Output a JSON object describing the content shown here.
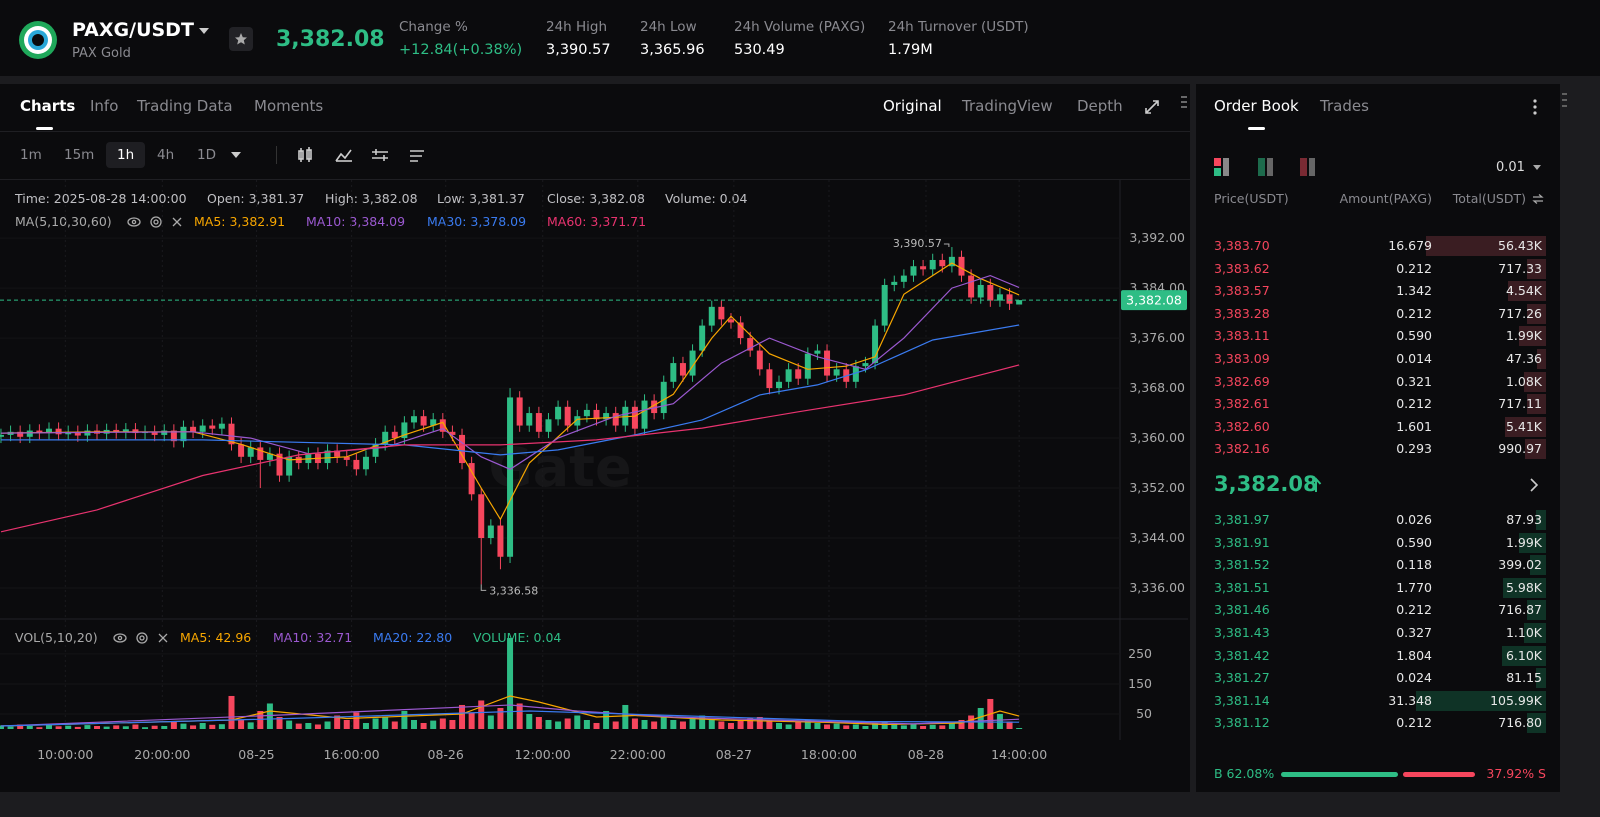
{
  "header": {
    "pair": "PAXG/USDT",
    "name": "PAX Gold",
    "price": "3,382.08",
    "stats": [
      {
        "label": "Change %",
        "value": "+12.84(+0.38%)"
      },
      {
        "label": "24h High",
        "value": "3,390.57"
      },
      {
        "label": "24h Low",
        "value": "3,365.96"
      },
      {
        "label": "24h Volume (PAXG)",
        "value": "530.49"
      },
      {
        "label": "24h Turnover (USDT)",
        "value": "1.79M"
      }
    ]
  },
  "tabs": [
    "Charts",
    "Info",
    "Trading Data",
    "Moments"
  ],
  "views": [
    "Original",
    "TradingView",
    "Depth"
  ],
  "intervals": [
    "1m",
    "15m",
    "1h",
    "4h",
    "1D"
  ],
  "chart_data": [
    {
      "type": "candlestick",
      "info": [
        "Time: 2025-08-28 14:00:00",
        "Open: 3,381.37",
        "High: 3,382.08",
        "Low: 3,381.37",
        "Close: 3,382.08",
        "Volume: 0.04"
      ],
      "indicator": "MA(5,10,30,60)",
      "watermark": "Gate",
      "up_color": "#2ebd85",
      "down_color": "#f6465d",
      "open": [
        3360.2,
        3360.5,
        3361,
        3360.2,
        3361.2,
        3360.8,
        3361.5,
        3360.6,
        3361,
        3360.4,
        3361.2,
        3360.7,
        3361.3,
        3360.9,
        3361.4,
        3360.8,
        3361,
        3360.5,
        3361.2,
        3359.5,
        3361.8,
        3361,
        3362,
        3361.5,
        3362.3,
        3359,
        3357,
        3358.5,
        3356.5,
        3357.5,
        3354,
        3357,
        3356,
        3357.5,
        3356,
        3358,
        3357,
        3356.5,
        3355,
        3357,
        3359,
        3361,
        3360,
        3362.5,
        3363.5,
        3362,
        3363,
        3361,
        3360.5,
        3356,
        3351,
        3344,
        3346,
        3341,
        3366.5,
        3362,
        3364,
        3361,
        3363,
        3365,
        3362,
        3363.5,
        3364.5,
        3363,
        3364,
        3362,
        3365,
        3361.5,
        3366,
        3364,
        3369,
        3372,
        3370,
        3374,
        3378,
        3381,
        3379,
        3378.5,
        3376,
        3374,
        3371,
        3368,
        3369,
        3371,
        3369.5,
        3373.5,
        3374,
        3370,
        3371,
        3369,
        3371.5,
        3372,
        3378,
        3384.5,
        3385,
        3386,
        3387.5,
        3387,
        3388.5,
        3387.5,
        3389,
        3386,
        3382.5,
        3384.5,
        3382,
        3383,
        3381.37
      ],
      "high": [
        3361.5,
        3362,
        3362,
        3362.2,
        3362.2,
        3362.5,
        3362.5,
        3362,
        3362,
        3362.2,
        3362.2,
        3362.3,
        3362.3,
        3362.4,
        3362.4,
        3362,
        3362,
        3362.2,
        3362.2,
        3362.8,
        3362.8,
        3363,
        3363,
        3363.3,
        3363.3,
        3360,
        3359.5,
        3359.5,
        3358.5,
        3358.5,
        3358,
        3358,
        3358.5,
        3358.5,
        3359,
        3359,
        3358,
        3357.5,
        3358,
        3360,
        3362,
        3362,
        3363.5,
        3364.5,
        3364.5,
        3364,
        3364,
        3362,
        3361.5,
        3357,
        3352,
        3347,
        3347,
        3368,
        3367.5,
        3365,
        3365,
        3364,
        3366,
        3366,
        3364.5,
        3365.5,
        3365.5,
        3365,
        3365,
        3366,
        3366,
        3367,
        3367,
        3370,
        3373,
        3373,
        3375,
        3379,
        3382,
        3382,
        3380,
        3379.5,
        3377,
        3375,
        3372,
        3370,
        3372,
        3372,
        3374.5,
        3375,
        3375,
        3372,
        3372,
        3372.5,
        3373,
        3379,
        3385.5,
        3386,
        3387,
        3388.5,
        3388.5,
        3389.5,
        3389.5,
        3390.57,
        3390,
        3387,
        3385.5,
        3385.5,
        3384,
        3384,
        3382.08
      ],
      "low": [
        3359.2,
        3359.5,
        3359.2,
        3359.2,
        3359.8,
        3359.8,
        3359.6,
        3359.6,
        3359.4,
        3359.4,
        3359.7,
        3359.7,
        3359.9,
        3359.9,
        3359.8,
        3359.8,
        3359.5,
        3359.5,
        3358.5,
        3358.5,
        3360,
        3360,
        3360.5,
        3360.5,
        3358,
        3356,
        3356,
        3352,
        3355.5,
        3353,
        3353,
        3355,
        3355,
        3355,
        3355,
        3356,
        3355.5,
        3354,
        3354,
        3356,
        3358,
        3359,
        3359,
        3361.5,
        3361,
        3361,
        3360,
        3359.5,
        3355,
        3350,
        3336.58,
        3343,
        3339,
        3340,
        3361,
        3361,
        3360,
        3360,
        3362,
        3361,
        3361,
        3362.5,
        3362,
        3362,
        3361,
        3361,
        3360.5,
        3360.5,
        3363,
        3363,
        3368,
        3369,
        3369,
        3373,
        3377,
        3378,
        3377.5,
        3375,
        3373,
        3370,
        3367,
        3367,
        3368,
        3368.5,
        3368.5,
        3372.5,
        3369,
        3369,
        3368,
        3368,
        3370.5,
        3371,
        3377,
        3383.5,
        3384,
        3385,
        3386,
        3386,
        3386.5,
        3386.5,
        3385,
        3381.5,
        3381.5,
        3381,
        3381,
        3380.5,
        3381.37
      ],
      "close": [
        3360.5,
        3361,
        3360.2,
        3361.2,
        3360.8,
        3361.5,
        3360.6,
        3361,
        3360.4,
        3361.2,
        3360.7,
        3361.3,
        3360.9,
        3361.4,
        3360.8,
        3361,
        3360.5,
        3361.2,
        3359.5,
        3361.8,
        3361,
        3362,
        3361.5,
        3362.3,
        3359,
        3357,
        3358.5,
        3356.5,
        3357.5,
        3354,
        3357,
        3356,
        3357.5,
        3356,
        3358,
        3357,
        3356.5,
        3355,
        3357,
        3359,
        3361,
        3360,
        3362.5,
        3363.5,
        3362,
        3363,
        3361,
        3360.5,
        3356,
        3351,
        3344,
        3346,
        3341,
        3366.5,
        3362,
        3364,
        3361,
        3363,
        3365,
        3362,
        3363.5,
        3364.5,
        3363,
        3364,
        3362,
        3365,
        3361.5,
        3366,
        3364,
        3369,
        3372,
        3370,
        3374,
        3378,
        3381,
        3379,
        3378.5,
        3376,
        3374,
        3371,
        3368,
        3369,
        3371,
        3369.5,
        3373.5,
        3374,
        3370,
        3371,
        3369,
        3371.5,
        3372,
        3378,
        3384.5,
        3385,
        3386,
        3387.5,
        3387,
        3388.5,
        3387.5,
        3389,
        3386,
        3382.5,
        3384.5,
        3382,
        3383,
        3381.5,
        3382.08
      ],
      "series": [
        {
          "legend": "MA5: 3,382.91",
          "color": "#f7a600",
          "x": [
            0,
            10,
            20,
            25,
            30,
            36,
            42,
            46,
            50,
            52,
            55,
            60,
            66,
            70,
            74,
            76,
            80,
            84,
            88,
            91,
            94,
            99,
            102,
            106
          ],
          "values": [
            3360.8,
            3361,
            3361,
            3359,
            3356.5,
            3357,
            3360.5,
            3362.5,
            3352,
            3347,
            3356,
            3363,
            3363.5,
            3367,
            3376,
            3379.5,
            3373.5,
            3371,
            3371.5,
            3373,
            3383,
            3388,
            3385.5,
            3382.91
          ]
        },
        {
          "legend": "MA10: 3,384.09",
          "color": "#9b59d0",
          "x": [
            0,
            10,
            20,
            26,
            32,
            40,
            46,
            50,
            53,
            58,
            64,
            70,
            75,
            80,
            85,
            90,
            94,
            99,
            103,
            106
          ],
          "values": [
            3360.8,
            3360.9,
            3361,
            3360,
            3357.5,
            3358.5,
            3361.5,
            3357,
            3355,
            3360,
            3363.5,
            3365.5,
            3372,
            3376,
            3373,
            3371,
            3376,
            3384,
            3386,
            3384.09
          ]
        },
        {
          "legend": "MA30: 3,378.09",
          "color": "#3a7bf0",
          "x": [
            0,
            21,
            42,
            52,
            58,
            66,
            73,
            79,
            85,
            90,
            97,
            106
          ],
          "values": [
            3359.7,
            3359.7,
            3358.9,
            3357.3,
            3358.1,
            3360.5,
            3362.9,
            3366.9,
            3368.5,
            3370.9,
            3375.7,
            3378.09
          ]
        },
        {
          "legend": "MA60: 3,371.71",
          "color": "#e8336f",
          "x": [
            0,
            10,
            21,
            31,
            42,
            52,
            62,
            73,
            83,
            94,
            106
          ],
          "values": [
            3345,
            3348.5,
            3354,
            3357.3,
            3358.9,
            3358.9,
            3359.7,
            3361.6,
            3364.2,
            3366.9,
            3371.71
          ]
        }
      ],
      "last_price": {
        "value": 3382.08,
        "label": "3,382.08"
      },
      "annotations": [
        {
          "x": 99,
          "value": 3390.57,
          "label": "3,390.57"
        },
        {
          "x": 50,
          "value": 3336.58,
          "label": "3,336.58"
        }
      ],
      "xlim": [
        -0.1,
        116.5
      ],
      "xticks": [
        {
          "value": 6.7,
          "label": "10:00:00"
        },
        {
          "value": 16.8,
          "label": "20:00:00"
        },
        {
          "value": 26.6,
          "label": "08-25"
        },
        {
          "value": 36.5,
          "label": "16:00:00"
        },
        {
          "value": 46.3,
          "label": "08-26"
        },
        {
          "value": 56.4,
          "label": "12:00:00"
        },
        {
          "value": 66.3,
          "label": "22:00:00"
        },
        {
          "value": 76.3,
          "label": "08-27"
        },
        {
          "value": 86.2,
          "label": "18:00:00"
        },
        {
          "value": 96.3,
          "label": "08-28"
        },
        {
          "value": 106,
          "label": "14:00:00"
        }
      ],
      "ylim": [
        3331.2,
        3401.3
      ],
      "yticks": [
        {
          "value": 3336,
          "label": "3,336.00"
        },
        {
          "value": 3344,
          "label": "3,344.00"
        },
        {
          "value": 3352,
          "label": "3,352.00"
        },
        {
          "value": 3360,
          "label": "3,360.00"
        },
        {
          "value": 3368,
          "label": "3,368.00"
        },
        {
          "value": 3376,
          "label": "3,376.00"
        },
        {
          "value": 3384,
          "label": "3,384.00"
        },
        {
          "value": 3392,
          "label": "3,392.00"
        }
      ],
      "grid": true
    },
    {
      "type": "bar",
      "indicator": "VOL(5,10,20)",
      "values": [
        12,
        8,
        15,
        10,
        6,
        14,
        9,
        11,
        7,
        13,
        10,
        8,
        12,
        9,
        15,
        6,
        11,
        10,
        25,
        18,
        12,
        20,
        14,
        16,
        110,
        30,
        22,
        60,
        85,
        40,
        28,
        18,
        20,
        15,
        25,
        45,
        30,
        55,
        20,
        35,
        40,
        25,
        60,
        30,
        20,
        28,
        35,
        30,
        80,
        55,
        95,
        45,
        70,
        303,
        85,
        50,
        40,
        30,
        25,
        35,
        45,
        30,
        20,
        60,
        25,
        80,
        35,
        30,
        25,
        40,
        30,
        25,
        35,
        45,
        30,
        25,
        20,
        30,
        35,
        40,
        30,
        20,
        15,
        25,
        30,
        20,
        15,
        18,
        12,
        15,
        10,
        20,
        25,
        15,
        12,
        18,
        10,
        14,
        12,
        20,
        30,
        45,
        70,
        100,
        50,
        25,
        0.04
      ],
      "series": [
        {
          "legend": "MA5: 42.96",
          "color": "#f7a600",
          "x": [
            0,
            24,
            28,
            36,
            48,
            53,
            56,
            62,
            66,
            75,
            86,
            92,
            100,
            104,
            106
          ],
          "values": [
            10,
            30,
            60,
            35,
            50,
            110,
            90,
            40,
            45,
            30,
            22,
            15,
            20,
            60,
            42.96
          ]
        },
        {
          "legend": "MA10: 32.71",
          "color": "#9b59d0",
          "x": [
            0,
            28,
            53,
            60,
            70,
            80,
            95,
            106
          ],
          "values": [
            10,
            45,
            80,
            60,
            40,
            30,
            17,
            32.71
          ]
        },
        {
          "legend": "MA20: 22.80",
          "color": "#3a7bf0",
          "x": [
            0,
            30,
            55,
            70,
            90,
            106
          ],
          "values": [
            10,
            35,
            60,
            45,
            25,
            22.8
          ]
        }
      ],
      "volume_legend": "VOLUME: 0.04",
      "ylim": [
        0,
        363
      ],
      "yticks": [
        50,
        150,
        250
      ]
    }
  ],
  "order_book": {
    "tabs": [
      "Order Book",
      "Trades"
    ],
    "precision": "0.01",
    "columns": [
      "Price(USDT)",
      "Amount(PAXG)",
      "Total(USDT)"
    ],
    "asks": [
      [
        "3,383.70",
        "16.679",
        "56.43K"
      ],
      [
        "3,383.62",
        "0.212",
        "717.33"
      ],
      [
        "3,383.57",
        "1.342",
        "4.54K"
      ],
      [
        "3,383.28",
        "0.212",
        "717.26"
      ],
      [
        "3,383.11",
        "0.590",
        "1.99K"
      ],
      [
        "3,383.09",
        "0.014",
        "47.36"
      ],
      [
        "3,382.69",
        "0.321",
        "1.08K"
      ],
      [
        "3,382.61",
        "0.212",
        "717.11"
      ],
      [
        "3,382.60",
        "1.601",
        "5.41K"
      ],
      [
        "3,382.16",
        "0.293",
        "990.97"
      ]
    ],
    "mid": "3,382.08",
    "bids": [
      [
        "3,381.97",
        "0.026",
        "87.93"
      ],
      [
        "3,381.91",
        "0.590",
        "1.99K"
      ],
      [
        "3,381.52",
        "0.118",
        "399.02"
      ],
      [
        "3,381.51",
        "1.770",
        "5.98K"
      ],
      [
        "3,381.46",
        "0.212",
        "716.87"
      ],
      [
        "3,381.43",
        "0.327",
        "1.10K"
      ],
      [
        "3,381.42",
        "1.804",
        "6.10K"
      ],
      [
        "3,381.27",
        "0.024",
        "81.15"
      ],
      [
        "3,381.14",
        "31.348",
        "105.99K"
      ],
      [
        "3,381.12",
        "0.212",
        "716.80"
      ]
    ],
    "ratio": {
      "buy": {
        "value": 62.08,
        "label": "B 62.08%"
      },
      "sell": {
        "value": 37.92,
        "label": "37.92% S"
      }
    }
  }
}
